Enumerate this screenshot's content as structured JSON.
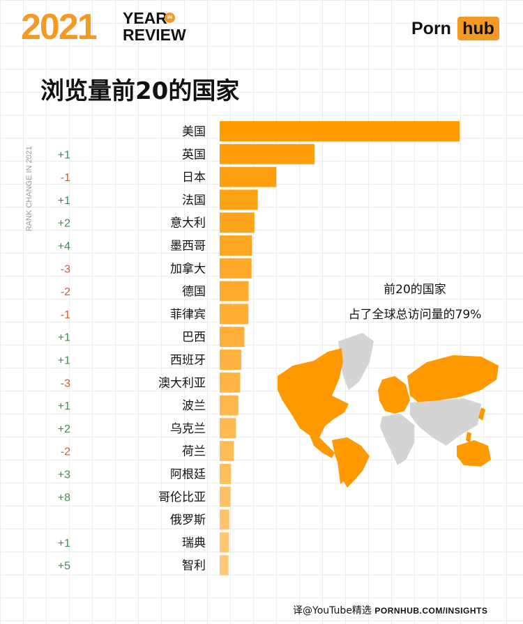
{
  "header": {
    "year": "2021",
    "year_in_review": "YEAR\nREVIEW",
    "in_badge": "IN",
    "brand_left": "Porn",
    "brand_right": "hub"
  },
  "title": "浏览量前20的国家",
  "axis_label": "RANK CHANGE IN 2021",
  "note": {
    "line1": "前20的国家",
    "line2": "占了全球总访问量的79%"
  },
  "footer": {
    "credit": "译@YouTube精选",
    "url": "PORNHUB.COM/INSIGHTS"
  },
  "colors": {
    "bar_top": "#ff9900",
    "bar_bottom": "#ffc97a",
    "accent": "#f49a24",
    "rank_up": "#3f8f4f",
    "rank_down": "#d65a2e",
    "map_highlight": "#ff9900",
    "map_other": "#d4d4d4"
  },
  "chart_data": {
    "type": "bar",
    "orientation": "horizontal",
    "categories": [
      "美国",
      "英国",
      "日本",
      "法国",
      "意大利",
      "墨西哥",
      "加拿大",
      "德国",
      "菲律宾",
      "巴西",
      "西班牙",
      "澳大利亚",
      "波兰",
      "乌克兰",
      "荷兰",
      "阿根廷",
      "哥伦比亚",
      "俄罗斯",
      "瑞典",
      "智利"
    ],
    "values": [
      100,
      39.5,
      23.6,
      15.9,
      14.5,
      13.5,
      13.3,
      12.1,
      12.0,
      10.3,
      9.0,
      8.6,
      7.8,
      6.8,
      5.9,
      4.7,
      4.5,
      4.0,
      3.9,
      3.7
    ],
    "rank_change": [
      "",
      "+1",
      "-1",
      "+1",
      "+2",
      "+4",
      "-3",
      "-2",
      "-1",
      "+1",
      "+1",
      "-3",
      "+1",
      "+2",
      "-2",
      "+3",
      "+8",
      "",
      "+1",
      "+5"
    ],
    "xlim": [
      0,
      100
    ],
    "grid": false,
    "legend": "none"
  }
}
